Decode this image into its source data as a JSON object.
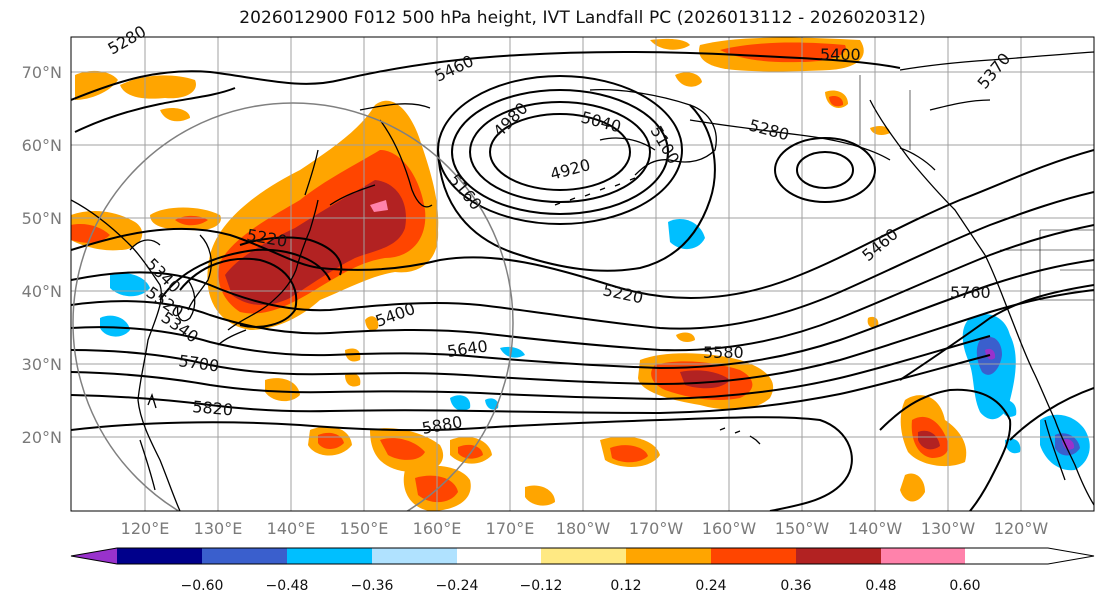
{
  "title": "2026012900 F012 500 hPa height, IVT Landfall PC (2026013112 - 2026020312)",
  "colors": {
    "cb": [
      "#9932cc",
      "#00008b",
      "#3a5fcd",
      "#00bfff",
      "#b0e2ff",
      "#ffffff",
      "#ffe983",
      "#ffa500",
      "#ff4500",
      "#b22222",
      "#ff82ab"
    ],
    "land": "#000000",
    "grid": "#a0a0a0",
    "contour": "#000000",
    "circle": "#808080"
  },
  "lat_labels": [
    "70°N",
    "60°N",
    "50°N",
    "40°N",
    "30°N",
    "20°N"
  ],
  "lon_labels": [
    "120°E",
    "130°E",
    "140°E",
    "150°E",
    "160°E",
    "170°E",
    "180°W",
    "170°W",
    "160°W",
    "150°W",
    "140°W",
    "130°W",
    "120°W"
  ],
  "colorbar": {
    "levels": [
      "−0.60",
      "−0.48",
      "−0.36",
      "−0.24",
      "−0.12",
      "0.12",
      "0.24",
      "0.36",
      "0.48",
      "0.60"
    ]
  },
  "contour_labels": [
    "5280",
    "5460",
    "4980",
    "5040",
    "5100",
    "4920",
    "5160",
    "5400",
    "5280",
    "5340",
    "5220",
    "5220",
    "5400",
    "5520",
    "5640",
    "5580",
    "5700",
    "5820",
    "5880",
    "5460",
    "5760",
    "5370",
    "5340"
  ]
}
